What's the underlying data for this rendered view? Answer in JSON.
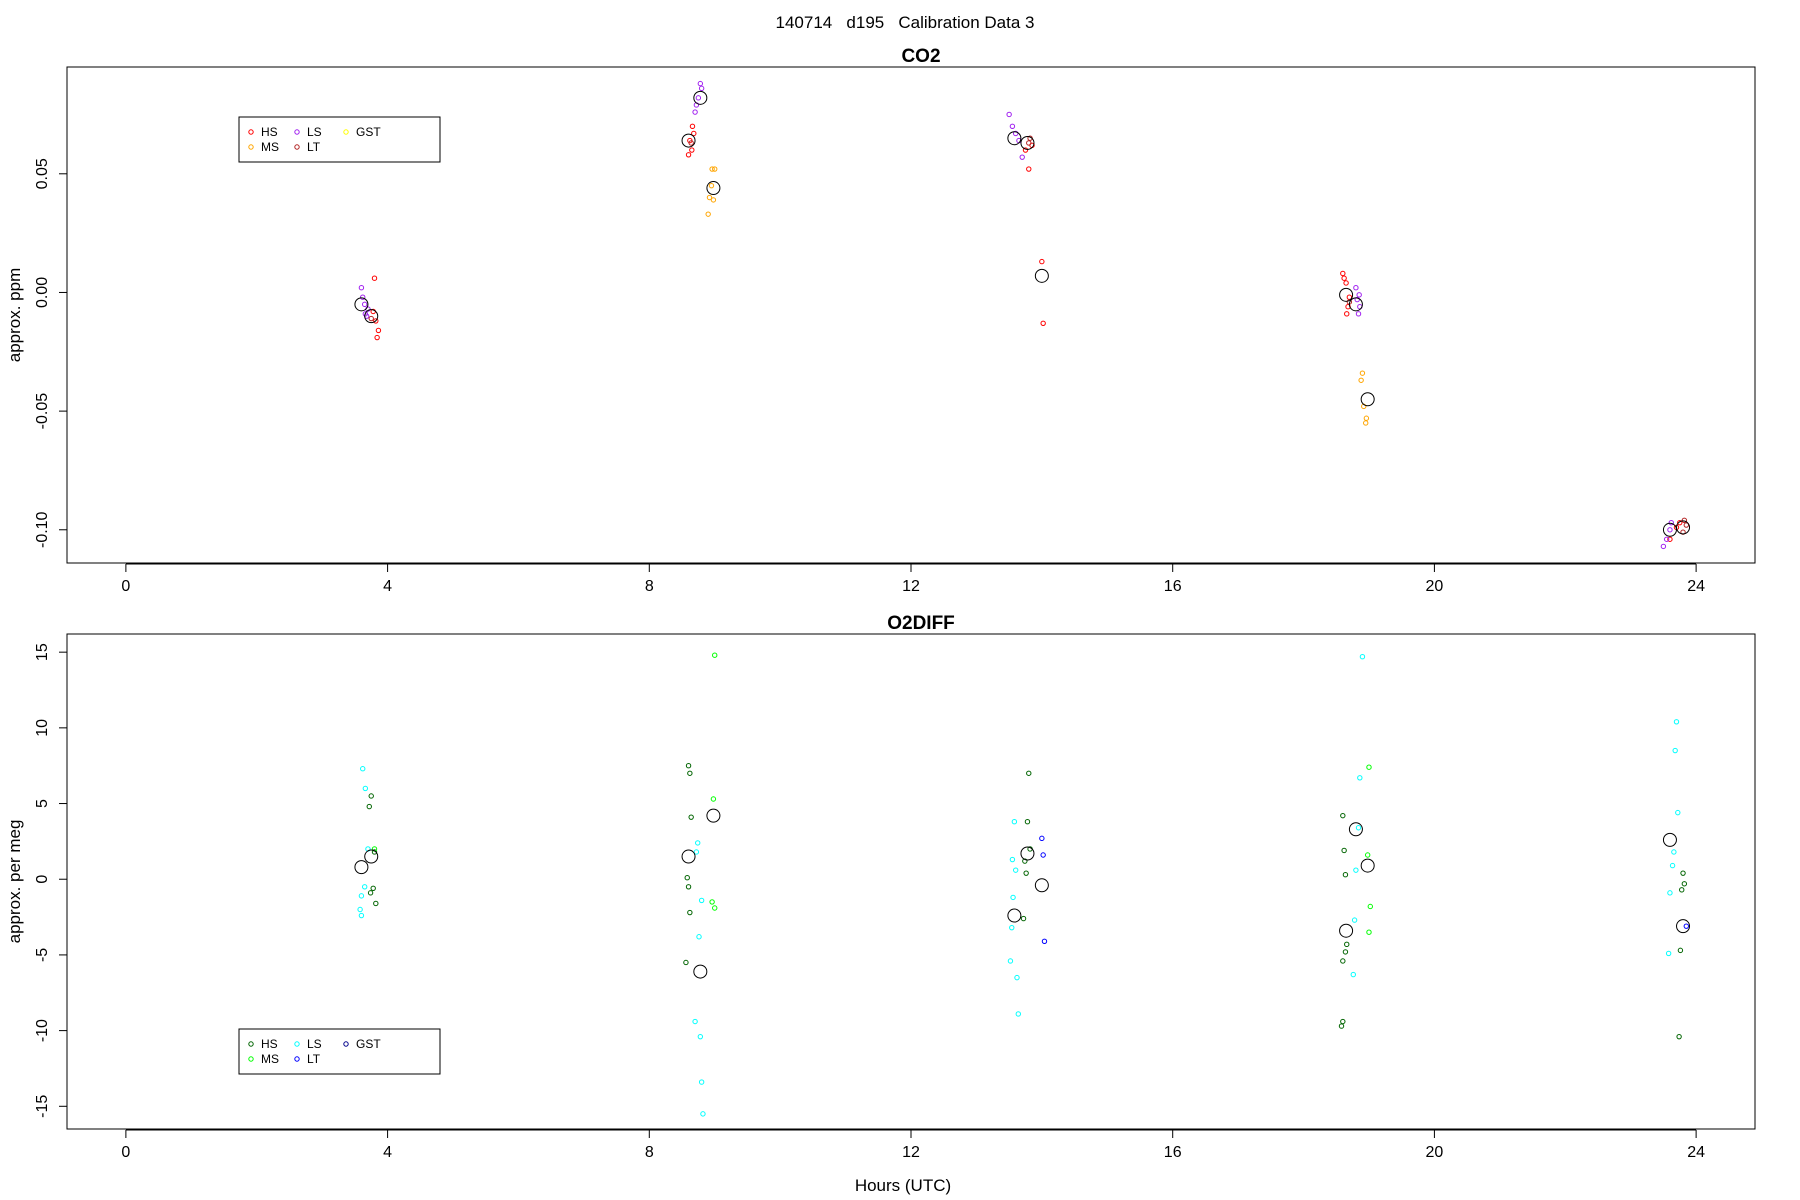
{
  "figure_title": "140714   d195   Calibration Data 3",
  "chart_data": [
    {
      "type": "scatter",
      "title": "CO2",
      "xlabel": "",
      "ylabel": "approx. ppm",
      "xlim": [
        -0.9,
        24.9
      ],
      "ylim": [
        -0.114,
        0.095
      ],
      "xticks": [
        0,
        4,
        8,
        12,
        16,
        20,
        24
      ],
      "yticks": [
        -0.1,
        -0.05,
        0.0,
        0.05
      ],
      "ytick_labels": [
        "-0.10",
        "-0.05",
        "0.00",
        "0.05"
      ],
      "legend": {
        "placement": "top-left",
        "entries": [
          {
            "name": "HS",
            "color": "#ff0000"
          },
          {
            "name": "MS",
            "color": "#ffa500"
          },
          {
            "name": "LS",
            "color": "#a020f0"
          },
          {
            "name": "LT",
            "color": "#b22222"
          },
          {
            "name": "GST",
            "color": "#ffff00"
          }
        ]
      },
      "series": [
        {
          "name": "HS",
          "color": "#ff0000",
          "points": [
            [
              3.8,
              0.006
            ],
            [
              3.82,
              -0.012
            ],
            [
              3.86,
              -0.016
            ],
            [
              3.84,
              -0.019
            ],
            [
              3.78,
              -0.008
            ],
            [
              8.6,
              0.058
            ],
            [
              8.65,
              0.06
            ],
            [
              8.62,
              0.064
            ],
            [
              8.68,
              0.067
            ],
            [
              8.66,
              0.07
            ],
            [
              13.8,
              0.052
            ],
            [
              13.75,
              0.06
            ],
            [
              13.85,
              0.062
            ],
            [
              14.0,
              0.013
            ],
            [
              14.02,
              -0.013
            ],
            [
              18.6,
              0.008
            ],
            [
              18.62,
              0.006
            ],
            [
              18.65,
              0.004
            ],
            [
              18.7,
              -0.002
            ],
            [
              18.68,
              -0.006
            ],
            [
              18.66,
              -0.009
            ],
            [
              23.6,
              -0.104
            ],
            [
              23.7,
              -0.099
            ],
            [
              23.75,
              -0.097
            ]
          ]
        },
        {
          "name": "MS",
          "color": "#ffa500",
          "points": [
            [
              8.9,
              0.033
            ],
            [
              8.92,
              0.04
            ],
            [
              8.95,
              0.045
            ],
            [
              8.98,
              0.039
            ],
            [
              9.0,
              0.052
            ],
            [
              8.96,
              0.052
            ],
            [
              18.9,
              -0.034
            ],
            [
              18.88,
              -0.037
            ],
            [
              18.92,
              -0.048
            ],
            [
              18.95,
              -0.055
            ],
            [
              18.96,
              -0.053
            ]
          ]
        },
        {
          "name": "LS",
          "color": "#a020f0",
          "points": [
            [
              3.6,
              0.002
            ],
            [
              3.62,
              -0.002
            ],
            [
              3.65,
              -0.005
            ],
            [
              3.7,
              -0.007
            ],
            [
              3.66,
              -0.009
            ],
            [
              3.68,
              -0.01
            ],
            [
              8.7,
              0.076
            ],
            [
              8.72,
              0.079
            ],
            [
              8.75,
              0.082
            ],
            [
              8.8,
              0.086
            ],
            [
              8.78,
              0.088
            ],
            [
              13.5,
              0.075
            ],
            [
              13.55,
              0.07
            ],
            [
              13.6,
              0.067
            ],
            [
              13.65,
              0.064
            ],
            [
              13.7,
              0.057
            ],
            [
              18.8,
              0.002
            ],
            [
              18.85,
              -0.001
            ],
            [
              18.82,
              -0.003
            ],
            [
              18.86,
              -0.006
            ],
            [
              18.84,
              -0.009
            ],
            [
              23.5,
              -0.107
            ],
            [
              23.55,
              -0.104
            ],
            [
              23.6,
              -0.1
            ],
            [
              23.62,
              -0.097
            ]
          ]
        },
        {
          "name": "LT",
          "color": "#b22222",
          "points": [
            [
              3.75,
              -0.011
            ],
            [
              8.64,
              0.063
            ],
            [
              13.8,
              0.063
            ],
            [
              13.82,
              0.065
            ],
            [
              18.7,
              -0.004
            ],
            [
              23.8,
              -0.101
            ],
            [
              23.85,
              -0.098
            ],
            [
              23.82,
              -0.096
            ]
          ]
        },
        {
          "name": "GST",
          "color": "#ffff00",
          "points": []
        }
      ],
      "means": [
        [
          3.6,
          -0.005
        ],
        [
          3.75,
          -0.01
        ],
        [
          8.6,
          0.064
        ],
        [
          8.78,
          0.082
        ],
        [
          8.98,
          0.044
        ],
        [
          13.58,
          0.065
        ],
        [
          13.78,
          0.063
        ],
        [
          14.0,
          0.007
        ],
        [
          18.65,
          -0.001
        ],
        [
          18.8,
          -0.005
        ],
        [
          18.98,
          -0.045
        ],
        [
          23.6,
          -0.1
        ],
        [
          23.8,
          -0.099
        ]
      ]
    },
    {
      "type": "scatter",
      "title": "O2DIFF",
      "xlabel": "Hours (UTC)",
      "ylabel": "approx. per meg",
      "xlim": [
        -0.9,
        24.9
      ],
      "ylim": [
        -16.5,
        16.2
      ],
      "xticks": [
        0,
        4,
        8,
        12,
        16,
        20,
        24
      ],
      "yticks": [
        -15,
        -10,
        -5,
        0,
        5,
        10,
        15
      ],
      "ytick_labels": [
        "-15",
        "-10",
        "-5",
        "0",
        "5",
        "10",
        "15"
      ],
      "legend": {
        "placement": "bottom-left",
        "entries": [
          {
            "name": "HS",
            "color": "#006400"
          },
          {
            "name": "MS",
            "color": "#00ff00"
          },
          {
            "name": "LS",
            "color": "#00ffff"
          },
          {
            "name": "LT",
            "color": "#0000ff"
          },
          {
            "name": "GST",
            "color": "#00008b"
          }
        ]
      },
      "series": [
        {
          "name": "HS",
          "color": "#006400",
          "points": [
            [
              3.75,
              5.5
            ],
            [
              3.72,
              4.8
            ],
            [
              3.8,
              1.8
            ],
            [
              3.74,
              -0.9
            ],
            [
              3.78,
              -0.6
            ],
            [
              3.82,
              -1.6
            ],
            [
              8.6,
              7.5
            ],
            [
              8.62,
              7.0
            ],
            [
              8.64,
              4.1
            ],
            [
              8.58,
              0.1
            ],
            [
              8.6,
              -0.5
            ],
            [
              8.62,
              -2.2
            ],
            [
              8.56,
              -5.5
            ],
            [
              13.8,
              7.0
            ],
            [
              13.78,
              3.8
            ],
            [
              13.82,
              2.0
            ],
            [
              13.74,
              1.2
            ],
            [
              13.76,
              0.4
            ],
            [
              13.72,
              -2.6
            ],
            [
              18.6,
              4.2
            ],
            [
              18.62,
              1.9
            ],
            [
              18.64,
              0.3
            ],
            [
              18.66,
              -4.3
            ],
            [
              18.64,
              -4.8
            ],
            [
              18.6,
              -5.4
            ],
            [
              18.6,
              -9.4
            ],
            [
              18.58,
              -9.7
            ],
            [
              23.8,
              0.4
            ],
            [
              23.82,
              -0.3
            ],
            [
              23.78,
              -0.7
            ],
            [
              23.76,
              -4.7
            ],
            [
              23.74,
              -10.4
            ]
          ]
        },
        {
          "name": "MS",
          "color": "#00ff00",
          "points": [
            [
              3.8,
              2.0
            ],
            [
              9.0,
              14.8
            ],
            [
              8.98,
              5.3
            ],
            [
              8.96,
              -1.5
            ],
            [
              9.0,
              -1.9
            ],
            [
              19.0,
              7.4
            ],
            [
              18.98,
              1.6
            ],
            [
              19.02,
              -1.8
            ],
            [
              19.0,
              -3.5
            ]
          ]
        },
        {
          "name": "LS",
          "color": "#00ffff",
          "points": [
            [
              3.62,
              7.3
            ],
            [
              3.66,
              6.0
            ],
            [
              3.7,
              2.0
            ],
            [
              3.65,
              -0.5
            ],
            [
              3.6,
              -1.1
            ],
            [
              3.58,
              -2.0
            ],
            [
              3.6,
              -2.4
            ],
            [
              8.8,
              -1.4
            ],
            [
              8.74,
              2.4
            ],
            [
              8.72,
              1.8
            ],
            [
              8.76,
              -3.8
            ],
            [
              8.7,
              -9.4
            ],
            [
              8.78,
              -10.4
            ],
            [
              8.8,
              -13.4
            ],
            [
              8.82,
              -15.5
            ],
            [
              13.58,
              3.8
            ],
            [
              13.55,
              1.3
            ],
            [
              13.6,
              0.6
            ],
            [
              13.56,
              -1.2
            ],
            [
              13.54,
              -3.2
            ],
            [
              13.52,
              -5.4
            ],
            [
              13.62,
              -6.5
            ],
            [
              13.64,
              -8.9
            ],
            [
              18.9,
              14.7
            ],
            [
              18.86,
              6.7
            ],
            [
              18.84,
              3.4
            ],
            [
              18.8,
              0.6
            ],
            [
              18.78,
              -2.7
            ],
            [
              18.76,
              -6.3
            ],
            [
              23.7,
              10.4
            ],
            [
              23.68,
              8.5
            ],
            [
              23.72,
              4.4
            ],
            [
              23.66,
              1.8
            ],
            [
              23.64,
              0.9
            ],
            [
              23.6,
              -0.9
            ],
            [
              23.58,
              -4.9
            ]
          ]
        },
        {
          "name": "LT",
          "color": "#0000ff",
          "points": [
            [
              14.0,
              2.7
            ],
            [
              14.02,
              1.6
            ],
            [
              14.04,
              -4.1
            ],
            [
              23.85,
              -3.1
            ]
          ]
        },
        {
          "name": "GST",
          "color": "#00008b",
          "points": []
        }
      ],
      "means": [
        [
          3.6,
          0.8
        ],
        [
          3.75,
          1.5
        ],
        [
          8.6,
          1.5
        ],
        [
          8.78,
          -6.1
        ],
        [
          8.98,
          4.2
        ],
        [
          13.58,
          -2.4
        ],
        [
          13.78,
          1.7
        ],
        [
          14.0,
          -0.4
        ],
        [
          18.65,
          -3.4
        ],
        [
          18.8,
          3.3
        ],
        [
          18.98,
          0.9
        ],
        [
          23.6,
          2.6
        ],
        [
          23.8,
          -3.1
        ]
      ]
    }
  ]
}
